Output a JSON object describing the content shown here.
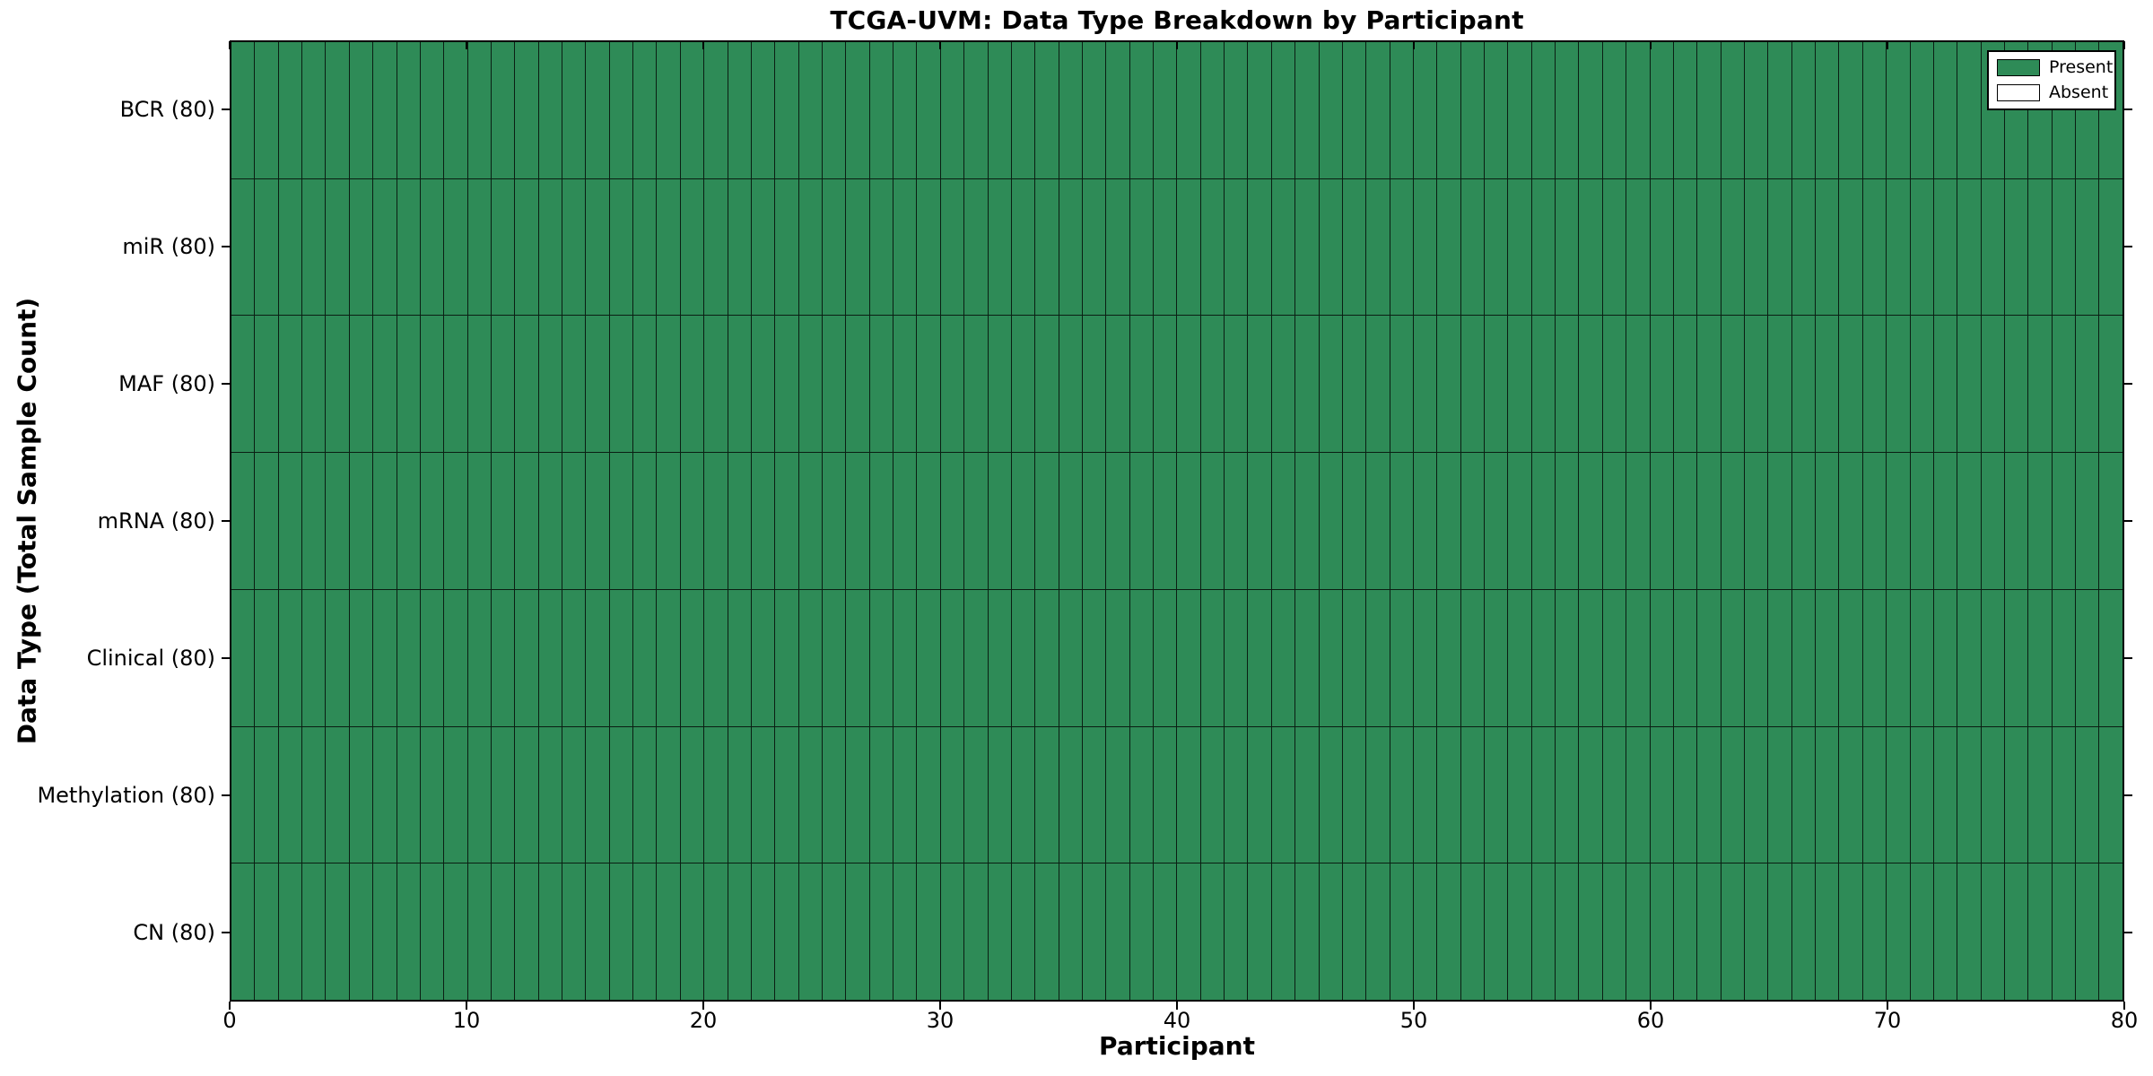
{
  "figure": {
    "background": "#FFFFFF"
  },
  "chart_data": {
    "type": "heatmap",
    "title": "TCGA-UVM: Data Type Breakdown by Participant",
    "xlabel": "Participant",
    "ylabel": "Data Type (Total Sample Count)",
    "x_axis": {
      "min": 0,
      "max": 80,
      "ticks": [
        0,
        10,
        20,
        30,
        40,
        50,
        60,
        70,
        80
      ]
    },
    "n_participants": 80,
    "rows": [
      {
        "label": "BCR (80)",
        "data_type": "BCR",
        "total_samples": 80,
        "present_count": 80,
        "absent_count": 0
      },
      {
        "label": "miR (80)",
        "data_type": "miR",
        "total_samples": 80,
        "present_count": 80,
        "absent_count": 0
      },
      {
        "label": "MAF (80)",
        "data_type": "MAF",
        "total_samples": 80,
        "present_count": 80,
        "absent_count": 0
      },
      {
        "label": "mRNA (80)",
        "data_type": "mRNA",
        "total_samples": 80,
        "present_count": 80,
        "absent_count": 0
      },
      {
        "label": "Clinical (80)",
        "data_type": "Clinical",
        "total_samples": 80,
        "present_count": 80,
        "absent_count": 0
      },
      {
        "label": "Methylation (80)",
        "data_type": "Methylation",
        "total_samples": 80,
        "present_count": 80,
        "absent_count": 0
      },
      {
        "label": "CN (80)",
        "data_type": "CN",
        "total_samples": 80,
        "present_count": 80,
        "absent_count": 0
      }
    ],
    "cell_values_note": "every participant x data-type cell is Present",
    "legend": {
      "position": "upper-right",
      "entries": [
        {
          "label": "Present",
          "color": "#2E8B57"
        },
        {
          "label": "Absent",
          "color": "#FFFFFF"
        }
      ]
    },
    "colors": {
      "present": "#2E8B57",
      "absent": "#FFFFFF",
      "cell_edge": "rgba(0,0,0,0.78)",
      "spine": "#000000",
      "text": "#000000"
    },
    "grid": true
  }
}
